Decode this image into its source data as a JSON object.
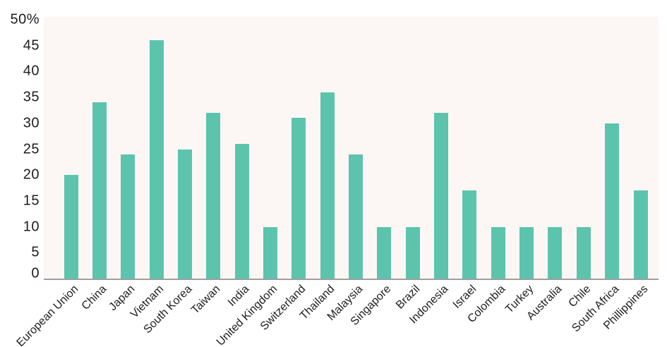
{
  "chart_data": {
    "type": "bar",
    "title": "",
    "categories": [
      "European Union",
      "China",
      "Japan",
      "Vietnam",
      "South Korea",
      "Taiwan",
      "India",
      "United Kingdom",
      "Switzerland",
      "Thailand",
      "Malaysia",
      "Singapore",
      "Brazil",
      "Indonesia",
      "Israel",
      "Colombia",
      "Turkey",
      "Australia",
      "Chile",
      "South Africa",
      "Phillippines"
    ],
    "values": [
      20,
      34,
      24,
      46,
      25,
      32,
      26,
      10,
      31,
      36,
      24,
      10,
      10,
      32,
      17,
      10,
      10,
      10,
      10,
      30,
      17
    ],
    "unit": "%",
    "xlabel": "",
    "ylabel": "",
    "ylim": [
      0,
      50
    ],
    "ytick_step": 5,
    "ytick_values": [
      0,
      5,
      10,
      15,
      20,
      25,
      30,
      35,
      40,
      45,
      50
    ],
    "ytick_labels": [
      "0",
      "5",
      "10",
      "15",
      "20",
      "25",
      "30",
      "35",
      "40",
      "45",
      "50%"
    ],
    "grid": false,
    "legend": "none",
    "bar_color": "#5cc4ad",
    "plot_background": "#fcf7f5",
    "axis_line_color": "#9e9e9e",
    "text_color": "#1d1d1d",
    "figure_background": "#ffffff"
  }
}
